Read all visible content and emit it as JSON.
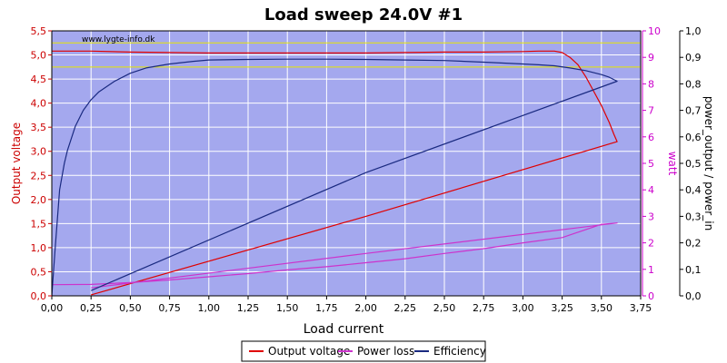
{
  "chart_data": {
    "type": "line",
    "title": "Load sweep 24.0V #1",
    "watermark": "www.lygte-info.dk",
    "xlabel": "Load current",
    "ylabel_left": "Output voltage",
    "ylabel_mid": "watt",
    "ylabel_right": "power_output / power_in",
    "xlim": [
      0,
      3.75
    ],
    "ylim_left": [
      0,
      5.5
    ],
    "ylim_mid": [
      0,
      10
    ],
    "ylim_right": [
      0,
      1.0
    ],
    "x_ticks": [
      "0,00",
      "0,25",
      "0,50",
      "0,75",
      "1,00",
      "1,25",
      "1,50",
      "1,75",
      "2,00",
      "2,25",
      "2,50",
      "2,75",
      "3,00",
      "3,25",
      "3,50",
      "3,75"
    ],
    "y_left_ticks": [
      "0,0",
      "0,5",
      "1,0",
      "1,5",
      "2,0",
      "2,5",
      "3,0",
      "3,5",
      "4,0",
      "4,5",
      "5,0",
      "5,5"
    ],
    "y_mid_ticks": [
      "0",
      "1",
      "2",
      "3",
      "4",
      "5",
      "6",
      "7",
      "8",
      "9",
      "10"
    ],
    "y_right_ticks": [
      "0,0",
      "0,1",
      "0,2",
      "0,3",
      "0,4",
      "0,5",
      "0,6",
      "0,7",
      "0,8",
      "0,9",
      "1,0"
    ],
    "reference_lines_left": [
      4.75,
      5.25
    ],
    "grid": true,
    "legend_position": "bottom",
    "colors": {
      "background": "#a4a8ee",
      "grid": "#ffffff",
      "reference": "#e6e600",
      "voltage": "#e00000",
      "power_loss": "#cc33cc",
      "efficiency": "#1a2a80"
    },
    "series": [
      {
        "name": "Output voltage",
        "axis": "left",
        "color": "#e00000",
        "x": [
          0.0,
          0.25,
          0.5,
          0.75,
          1.0,
          1.25,
          1.5,
          1.75,
          2.0,
          2.25,
          2.5,
          2.75,
          3.0,
          3.1,
          3.2,
          3.25,
          3.3,
          3.35,
          3.4,
          3.45,
          3.5,
          3.55,
          3.58,
          3.6,
          3.6,
          2.0,
          0.25
        ],
        "y": [
          5.08,
          5.08,
          5.06,
          5.05,
          5.04,
          5.04,
          5.04,
          5.04,
          5.04,
          5.05,
          5.06,
          5.06,
          5.07,
          5.08,
          5.08,
          5.05,
          4.95,
          4.8,
          4.55,
          4.25,
          3.95,
          3.6,
          3.35,
          3.2,
          3.2,
          1.65,
          0.02
        ]
      },
      {
        "name": "Power loss",
        "axis": "mid",
        "color": "#cc33cc",
        "x": [
          0.0,
          0.25,
          0.5,
          0.75,
          1.0,
          1.25,
          1.5,
          1.75,
          2.0,
          2.25,
          2.5,
          2.75,
          3.0,
          3.25,
          3.5,
          3.6,
          3.6,
          2.0,
          0.25
        ],
        "y": [
          0.42,
          0.43,
          0.5,
          0.6,
          0.72,
          0.84,
          0.98,
          1.1,
          1.25,
          1.4,
          1.6,
          1.78,
          2.0,
          2.2,
          2.7,
          2.75,
          2.75,
          1.6,
          0.3
        ]
      },
      {
        "name": "Efficiency",
        "axis": "right",
        "color": "#1a2a80",
        "x": [
          0.0,
          0.02,
          0.05,
          0.08,
          0.1,
          0.15,
          0.2,
          0.25,
          0.3,
          0.4,
          0.5,
          0.6,
          0.75,
          0.9,
          1.0,
          1.25,
          1.5,
          1.75,
          2.0,
          2.25,
          2.5,
          2.75,
          3.0,
          3.1,
          3.2,
          3.3,
          3.4,
          3.5,
          3.55,
          3.6,
          3.6,
          2.0,
          0.25
        ],
        "y": [
          0.0,
          0.17,
          0.4,
          0.5,
          0.55,
          0.64,
          0.7,
          0.74,
          0.77,
          0.81,
          0.84,
          0.86,
          0.875,
          0.885,
          0.89,
          0.892,
          0.893,
          0.893,
          0.892,
          0.89,
          0.888,
          0.882,
          0.875,
          0.872,
          0.868,
          0.86,
          0.85,
          0.835,
          0.825,
          0.81,
          0.81,
          0.465,
          0.02
        ]
      }
    ]
  }
}
